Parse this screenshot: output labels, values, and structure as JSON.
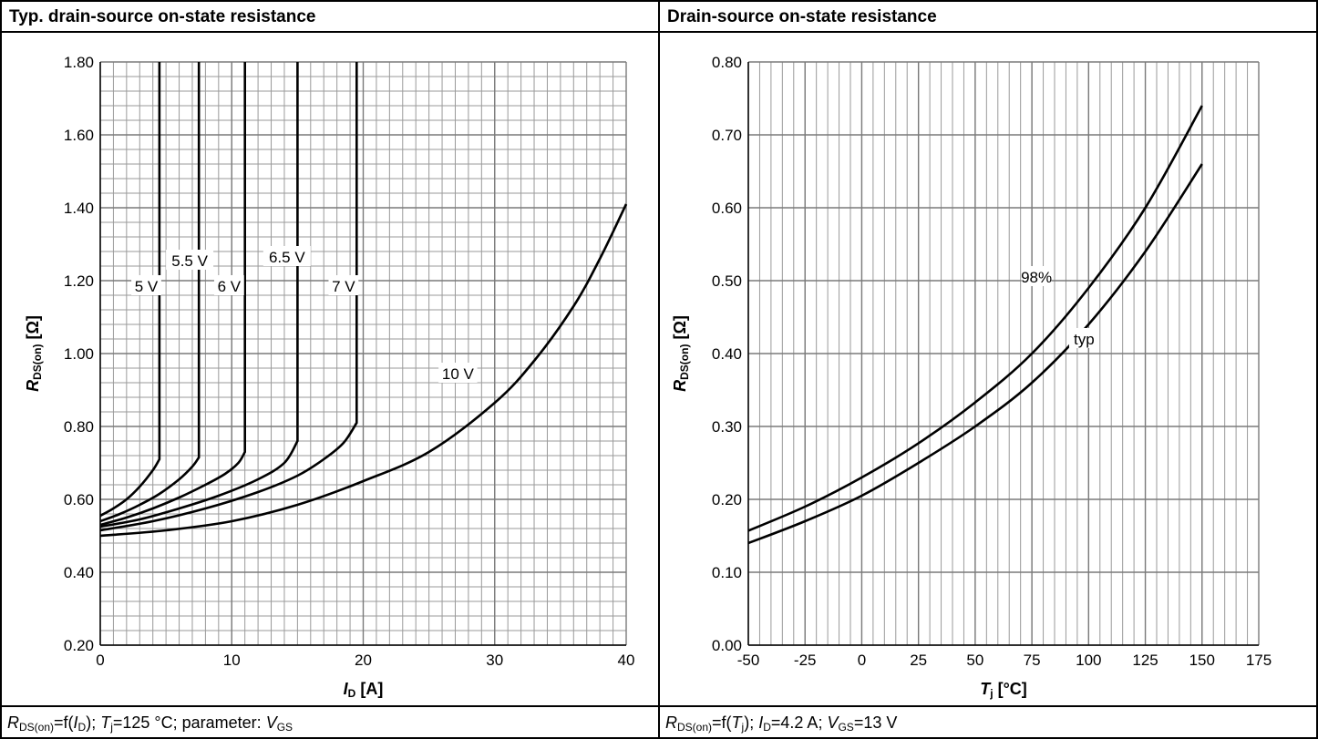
{
  "chart_data": [
    {
      "type": "line",
      "title": "Typ. drain-source on-state resistance",
      "xlabel_var": "I",
      "xlabel_sub": "D",
      "xlabel_unit": " [A]",
      "ylabel_var": "R",
      "ylabel_sub": "DS(on)",
      "ylabel_unit": " [Ω]",
      "xlim": [
        0,
        40
      ],
      "ylim": [
        0.2,
        1.8
      ],
      "x_ticks": [
        "0",
        "10",
        "20",
        "30",
        "40"
      ],
      "y_ticks": [
        "0.20",
        "0.40",
        "0.60",
        "0.80",
        "1.00",
        "1.20",
        "1.40",
        "1.60",
        "1.80"
      ],
      "grid": true,
      "series": [
        {
          "name": "5 V",
          "x": [
            0,
            1,
            2,
            3,
            4,
            4.5,
            4.5
          ],
          "y": [
            0.555,
            0.575,
            0.6,
            0.635,
            0.68,
            0.71,
            1.8
          ]
        },
        {
          "name": "5.5 V",
          "x": [
            0,
            1.5,
            3,
            4.5,
            6,
            7,
            7.5,
            7.5
          ],
          "y": [
            0.54,
            0.56,
            0.585,
            0.615,
            0.655,
            0.69,
            0.715,
            1.8
          ]
        },
        {
          "name": "6 V",
          "x": [
            0,
            2,
            4,
            6,
            8,
            9.5,
            10.5,
            11,
            11
          ],
          "y": [
            0.53,
            0.55,
            0.575,
            0.605,
            0.64,
            0.67,
            0.7,
            0.73,
            1.8
          ]
        },
        {
          "name": "6.5 V",
          "x": [
            0,
            3,
            6,
            9,
            12,
            14,
            15,
            15
          ],
          "y": [
            0.525,
            0.545,
            0.575,
            0.61,
            0.655,
            0.7,
            0.76,
            1.8
          ]
        },
        {
          "name": "7 V",
          "x": [
            0,
            4,
            8,
            12,
            15,
            17,
            18.5,
            19.5,
            19.5
          ],
          "y": [
            0.515,
            0.54,
            0.575,
            0.62,
            0.665,
            0.71,
            0.755,
            0.81,
            1.8
          ]
        },
        {
          "name": "10 V",
          "x": [
            0,
            5,
            10,
            15,
            20,
            25,
            30,
            33,
            36,
            38,
            40
          ],
          "y": [
            0.5,
            0.515,
            0.54,
            0.585,
            0.65,
            0.73,
            0.865,
            0.98,
            1.13,
            1.26,
            1.41
          ]
        }
      ],
      "labels": [
        {
          "text": "5 V",
          "x": 3.5,
          "y": 1.185
        },
        {
          "text": "5.5 V",
          "x": 6.8,
          "y": 1.255
        },
        {
          "text": "6 V",
          "x": 9.8,
          "y": 1.185
        },
        {
          "text": "6.5 V",
          "x": 14.2,
          "y": 1.265
        },
        {
          "text": "7 V",
          "x": 18.5,
          "y": 1.185
        },
        {
          "text": "10 V",
          "x": 27.2,
          "y": 0.945
        }
      ],
      "caption": {
        "p1_var": "R",
        "p1_sub": "DS(on)",
        "p2": "=f(",
        "p3_var": "I",
        "p3_sub": "D",
        "p4": "); ",
        "p5_var": "T",
        "p5_sub": "j",
        "p6": "=125 °C; parameter: ",
        "p7_var": "V",
        "p7_sub": "GS"
      }
    },
    {
      "type": "line",
      "title": "Drain-source on-state resistance",
      "xlabel_var": "T",
      "xlabel_sub": "j",
      "xlabel_unit": " [°C]",
      "ylabel_var": "R",
      "ylabel_sub": "DS(on)",
      "ylabel_unit": " [Ω]",
      "xlim": [
        -50,
        175
      ],
      "ylim": [
        0,
        0.8
      ],
      "x_ticks": [
        "-50",
        "-25",
        "0",
        "25",
        "50",
        "75",
        "100",
        "125",
        "150",
        "175"
      ],
      "y_ticks": [
        "0.00",
        "0.10",
        "0.20",
        "0.30",
        "0.40",
        "0.50",
        "0.60",
        "0.70",
        "0.80"
      ],
      "grid": true,
      "series": [
        {
          "name": "98%",
          "x": [
            -50,
            -25,
            0,
            25,
            50,
            75,
            100,
            125,
            150
          ],
          "y": [
            0.157,
            0.19,
            0.23,
            0.277,
            0.333,
            0.4,
            0.49,
            0.6,
            0.74
          ]
        },
        {
          "name": "typ",
          "x": [
            -50,
            -25,
            0,
            25,
            50,
            75,
            100,
            125,
            150
          ],
          "y": [
            0.14,
            0.17,
            0.205,
            0.25,
            0.3,
            0.36,
            0.44,
            0.54,
            0.66
          ]
        }
      ],
      "labels": [
        {
          "text": "98%",
          "x": 77,
          "y": 0.505
        },
        {
          "text": "typ",
          "x": 98,
          "y": 0.42
        }
      ],
      "caption": {
        "p1_var": "R",
        "p1_sub": "DS(on)",
        "p2": "=f(",
        "p3_var": "T",
        "p3_sub": "j",
        "p4": "); ",
        "p5_var": "I",
        "p5_sub": "D",
        "p6": "=4.2 A; ",
        "p7_var": "V",
        "p7_sub": "GS",
        "p8": "=13 V"
      }
    }
  ]
}
